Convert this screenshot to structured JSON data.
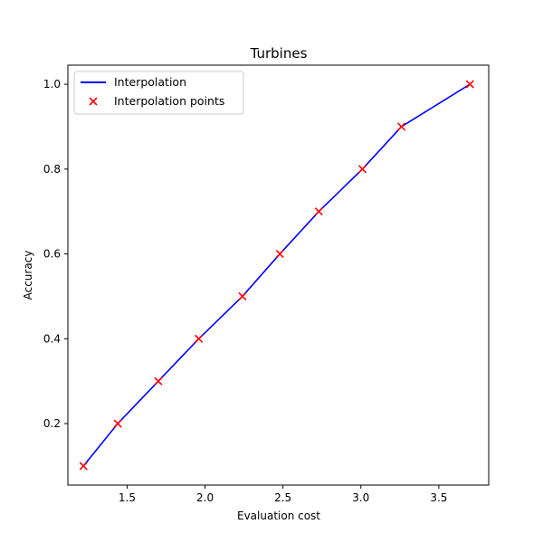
{
  "chart_data": {
    "type": "line",
    "title": "Turbines",
    "xlabel": "Evaluation cost",
    "ylabel": "Accuracy",
    "xlim": [
      1.12,
      3.82
    ],
    "ylim": [
      0.055,
      1.045
    ],
    "xticks": [
      1.5,
      2.0,
      2.5,
      3.0,
      3.5
    ],
    "xtick_labels": [
      "1.5",
      "2.0",
      "2.5",
      "3.0",
      "3.5"
    ],
    "yticks": [
      0.2,
      0.4,
      0.6,
      0.8,
      1.0
    ],
    "ytick_labels": [
      "0.2",
      "0.4",
      "0.6",
      "0.8",
      "1.0"
    ],
    "grid": false,
    "legend_position": "top-left",
    "series": [
      {
        "name": "Interpolation",
        "kind": "line",
        "color": "#0000ff",
        "x": [
          1.22,
          1.44,
          1.7,
          1.96,
          2.24,
          2.48,
          2.73,
          3.01,
          3.26,
          3.7
        ],
        "y": [
          0.1,
          0.2,
          0.3,
          0.4,
          0.5,
          0.6,
          0.7,
          0.8,
          0.9,
          1.0
        ]
      },
      {
        "name": "Interpolation points",
        "kind": "scatter",
        "marker": "x",
        "color": "#ff0000",
        "x": [
          1.22,
          1.44,
          1.7,
          1.96,
          2.24,
          2.48,
          2.73,
          3.01,
          3.26,
          3.7
        ],
        "y": [
          0.1,
          0.2,
          0.3,
          0.4,
          0.5,
          0.6,
          0.7,
          0.8,
          0.9,
          1.0
        ]
      }
    ]
  }
}
